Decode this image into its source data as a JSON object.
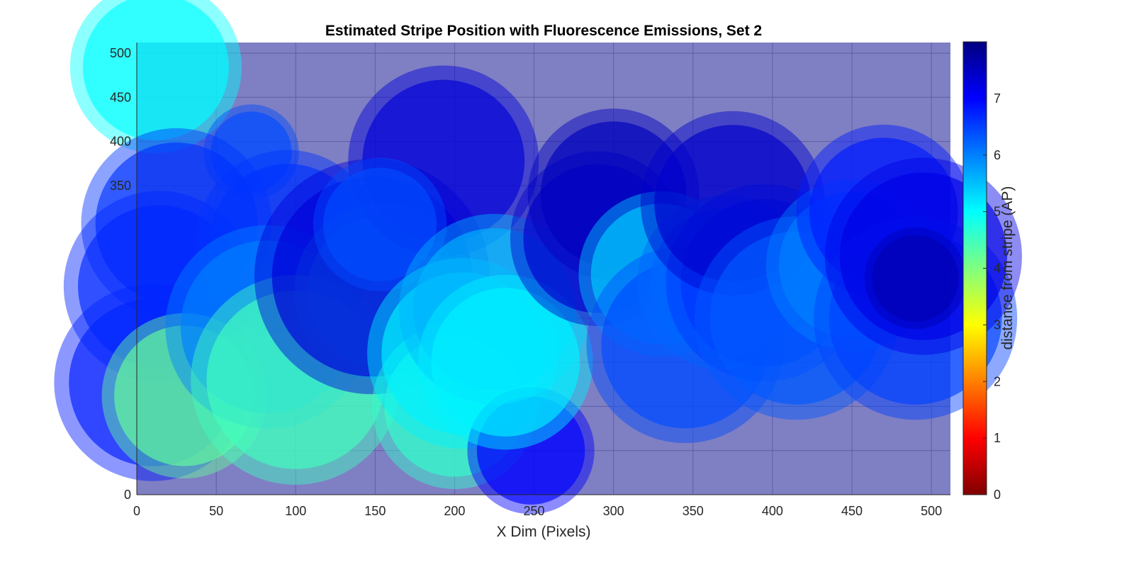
{
  "chart_data": {
    "type": "scatter",
    "title": "Estimated Stripe Position with Fluorescence Emissions, Set 2",
    "xlabel": "X Dim (Pixels)",
    "ylabel": "",
    "colorbar_label": "distance from stripe (AP)",
    "xlim": [
      0,
      512
    ],
    "ylim": [
      0,
      512
    ],
    "clim": [
      0,
      8
    ],
    "x_ticks": [
      0,
      50,
      100,
      150,
      200,
      250,
      300,
      350,
      400,
      450,
      500
    ],
    "y_ticks": [
      0,
      350,
      400,
      450,
      500
    ],
    "colorbar_ticks": [
      0,
      1,
      2,
      3,
      4,
      5,
      6,
      7
    ],
    "colormap": "jet",
    "grid": true,
    "background_color": "#7f7fc4",
    "points": [
      {
        "x": 12,
        "y": 484,
        "r": 54,
        "value": 5.0
      },
      {
        "x": 72,
        "y": 388,
        "r": 30,
        "value": 6.4
      },
      {
        "x": 25,
        "y": 307,
        "r": 60,
        "value": 6.6
      },
      {
        "x": 10,
        "y": 127,
        "r": 62,
        "value": 6.8
      },
      {
        "x": 14,
        "y": 236,
        "r": 60,
        "value": 6.7
      },
      {
        "x": 30,
        "y": 112,
        "r": 52,
        "value": 4.2
      },
      {
        "x": 95,
        "y": 286,
        "r": 58,
        "value": 6.6
      },
      {
        "x": 82,
        "y": 190,
        "r": 64,
        "value": 6.0
      },
      {
        "x": 100,
        "y": 130,
        "r": 66,
        "value": 4.5
      },
      {
        "x": 155,
        "y": 230,
        "r": 56,
        "value": 4.8
      },
      {
        "x": 148,
        "y": 247,
        "r": 74,
        "value": 7.3
      },
      {
        "x": 193,
        "y": 378,
        "r": 60,
        "value": 7.3
      },
      {
        "x": 153,
        "y": 306,
        "r": 42,
        "value": 6.4
      },
      {
        "x": 200,
        "y": 100,
        "r": 52,
        "value": 4.6
      },
      {
        "x": 205,
        "y": 160,
        "r": 60,
        "value": 5.1
      },
      {
        "x": 248,
        "y": 50,
        "r": 40,
        "value": 7.0
      },
      {
        "x": 225,
        "y": 210,
        "r": 60,
        "value": 5.6
      },
      {
        "x": 232,
        "y": 150,
        "r": 55,
        "value": 5.1
      },
      {
        "x": 290,
        "y": 290,
        "r": 55,
        "value": 7.4
      },
      {
        "x": 300,
        "y": 340,
        "r": 54,
        "value": 7.5
      },
      {
        "x": 330,
        "y": 250,
        "r": 52,
        "value": 5.4
      },
      {
        "x": 345,
        "y": 170,
        "r": 62,
        "value": 6.4
      },
      {
        "x": 370,
        "y": 240,
        "r": 55,
        "value": 6.2
      },
      {
        "x": 395,
        "y": 240,
        "r": 62,
        "value": 6.6
      },
      {
        "x": 375,
        "y": 330,
        "r": 58,
        "value": 7.4
      },
      {
        "x": 415,
        "y": 200,
        "r": 64,
        "value": 6.3
      },
      {
        "x": 450,
        "y": 260,
        "r": 54,
        "value": 6.0
      },
      {
        "x": 470,
        "y": 320,
        "r": 55,
        "value": 6.8
      },
      {
        "x": 490,
        "y": 200,
        "r": 64,
        "value": 6.5
      },
      {
        "x": 495,
        "y": 270,
        "r": 62,
        "value": 7.2
      },
      {
        "x": 490,
        "y": 245,
        "r": 32,
        "value": 7.6
      }
    ]
  }
}
